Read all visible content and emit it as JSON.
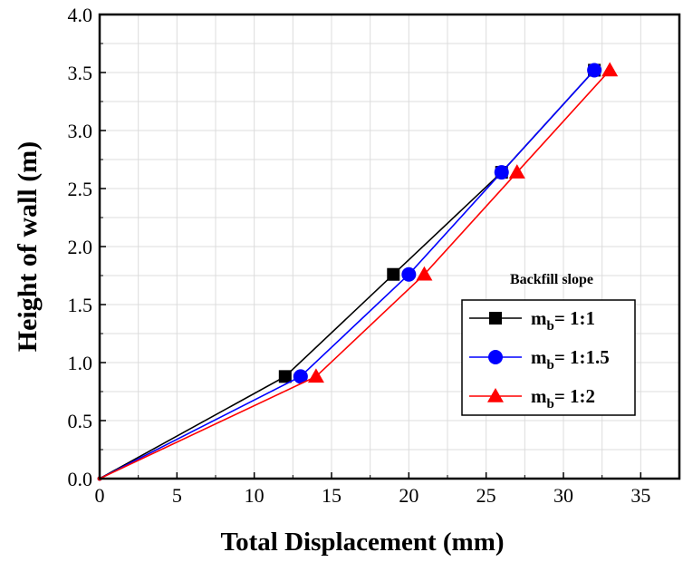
{
  "chart_data": {
    "type": "line",
    "xlabel": "Total Displacement (mm)",
    "ylabel": "Height of wall (m)",
    "xlim": [
      0,
      37.5
    ],
    "ylim": [
      0,
      4.0
    ],
    "xticks": [
      "0",
      "5",
      "10",
      "15",
      "20",
      "25",
      "30",
      "35"
    ],
    "yticks": [
      "0.0",
      "0.5",
      "1.0",
      "1.5",
      "2.0",
      "2.5",
      "3.0",
      "3.5",
      "4.0"
    ],
    "grid": true,
    "legend_position": "lower-right",
    "legend_title": "Backfill slope",
    "series": [
      {
        "name_main": "m",
        "name_sub": "b",
        "name_rest": "= 1:1",
        "marker": "square",
        "color": "#000000",
        "points": [
          [
            0,
            0
          ],
          [
            12,
            0.88
          ],
          [
            19,
            1.76
          ],
          [
            26,
            2.64
          ],
          [
            32,
            3.52
          ]
        ]
      },
      {
        "name_main": "m",
        "name_sub": "b",
        "name_rest": "= 1:1.5",
        "marker": "circle",
        "color": "#0000ff",
        "points": [
          [
            0,
            0
          ],
          [
            13,
            0.88
          ],
          [
            20,
            1.76
          ],
          [
            26,
            2.64
          ],
          [
            32,
            3.52
          ]
        ]
      },
      {
        "name_main": "m",
        "name_sub": "b",
        "name_rest": "= 1:2",
        "marker": "triangle",
        "color": "#ff0000",
        "points": [
          [
            0,
            0
          ],
          [
            14,
            0.88
          ],
          [
            21,
            1.76
          ],
          [
            27,
            2.64
          ],
          [
            33,
            3.52
          ]
        ]
      }
    ]
  }
}
